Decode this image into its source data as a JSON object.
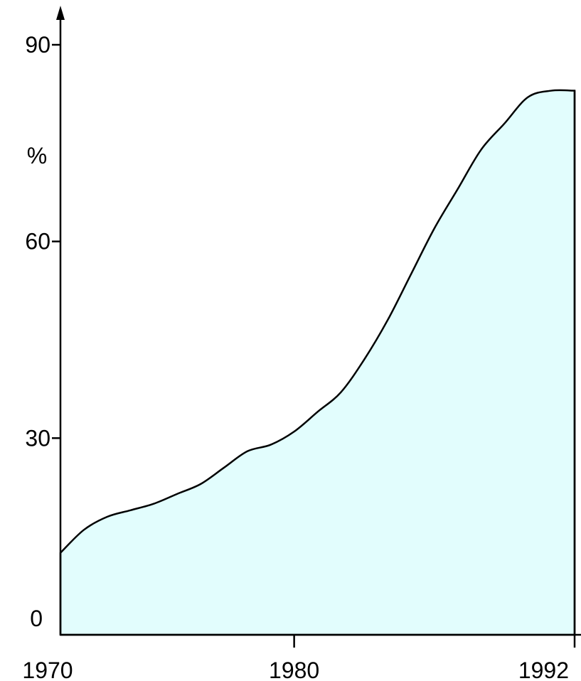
{
  "chart_data": {
    "type": "area",
    "title": "",
    "xlabel": "",
    "ylabel": "%",
    "xlim": [
      1970,
      1992
    ],
    "ylim": [
      0,
      90
    ],
    "x_ticks": [
      1970,
      1980,
      1992
    ],
    "y_ticks": [
      0,
      30,
      60,
      90
    ],
    "grid": false,
    "fill_color": "#e2fdfd",
    "line_color": "#000000",
    "series": [
      {
        "x": [
          1970,
          1971,
          1972,
          1973,
          1974,
          1975,
          1976,
          1977,
          1978,
          1979,
          1980,
          1981,
          1982,
          1983,
          1984,
          1985,
          1986,
          1987,
          1988,
          1989,
          1990,
          1991,
          1992
        ],
        "values": [
          12.5,
          16,
          18,
          19,
          20,
          21.5,
          23,
          25.5,
          28,
          29,
          31,
          34,
          37,
          42,
          48,
          55,
          62,
          68,
          74,
          78,
          82,
          83,
          83
        ]
      }
    ]
  }
}
